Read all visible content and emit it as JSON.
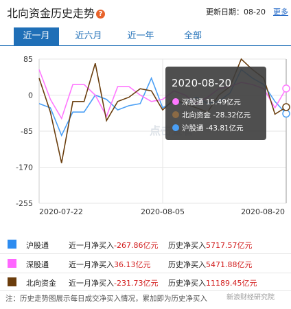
{
  "header": {
    "title": "北向资金历史走势",
    "help_icon": "question-circle-icon",
    "update_label": "更新日期：08-20",
    "more_label": "更多"
  },
  "tabs": [
    {
      "label": "近一月",
      "active": true
    },
    {
      "label": "近六月",
      "active": false
    },
    {
      "label": "近一年",
      "active": false
    },
    {
      "label": "全部",
      "active": false
    }
  ],
  "chart_data": {
    "type": "line",
    "y_ticks": [
      "85",
      "0",
      "-85",
      "-170",
      "-255"
    ],
    "ylim": [
      -255,
      85
    ],
    "x_tick_labels": [
      "2020-07-22",
      "2020-08-05",
      "2020-08-20"
    ],
    "watermark": "点击查看",
    "series": [
      {
        "name": "沪股通",
        "color": "#4a9ff5",
        "values": [
          -20,
          -30,
          -95,
          -40,
          -40,
          0,
          -10,
          -35,
          -25,
          -20,
          40,
          -30,
          -15,
          -20,
          -5,
          -20,
          -15,
          5,
          60,
          40,
          25,
          -15,
          -43.81
        ]
      },
      {
        "name": "深股通",
        "color": "#ff77ff",
        "values": [
          60,
          -10,
          -55,
          25,
          25,
          0,
          -50,
          20,
          20,
          0,
          -15,
          -10,
          10,
          0,
          -20,
          -5,
          15,
          20,
          30,
          25,
          15,
          -30,
          15.49
        ]
      },
      {
        "name": "北向资金",
        "color": "#6a3e0e",
        "values": [
          40,
          -40,
          -160,
          -15,
          -15,
          75,
          -60,
          -15,
          -5,
          15,
          10,
          -35,
          -10,
          -20,
          -30,
          -40,
          0,
          20,
          85,
          60,
          40,
          -45,
          -28.32
        ]
      }
    ],
    "tooltip": {
      "date": "2020-08-20",
      "rows": [
        {
          "label": "深股通 15.49亿元",
          "color": "#ff77ff"
        },
        {
          "label": "北向资金 -28.32亿元",
          "color": "#8b6a45"
        },
        {
          "label": "沪股通 -43.81亿元",
          "color": "#4a9ff5"
        }
      ]
    }
  },
  "legend": [
    {
      "name": "沪股通",
      "color": "#2d8cf0",
      "month_label": "近一月净买入",
      "month_value": "-267.86亿元",
      "hist_label": "历史净买入",
      "hist_value": "5717.57亿元"
    },
    {
      "name": "深股通",
      "color": "#ff66ff",
      "month_label": "近一月净买入",
      "month_value": "36.13亿元",
      "hist_label": "历史净买入",
      "hist_value": "5471.88亿元"
    },
    {
      "name": "北向资金",
      "color": "#6b3d0c",
      "month_label": "近一月净买入",
      "month_value": "-231.73亿元",
      "hist_label": "历史净买入",
      "hist_value": "11189.45亿元"
    }
  ],
  "note": "注：历史走势图展示每日成交净买入情况，累加即为历史净买入",
  "watermark": "新浪财经研究院"
}
